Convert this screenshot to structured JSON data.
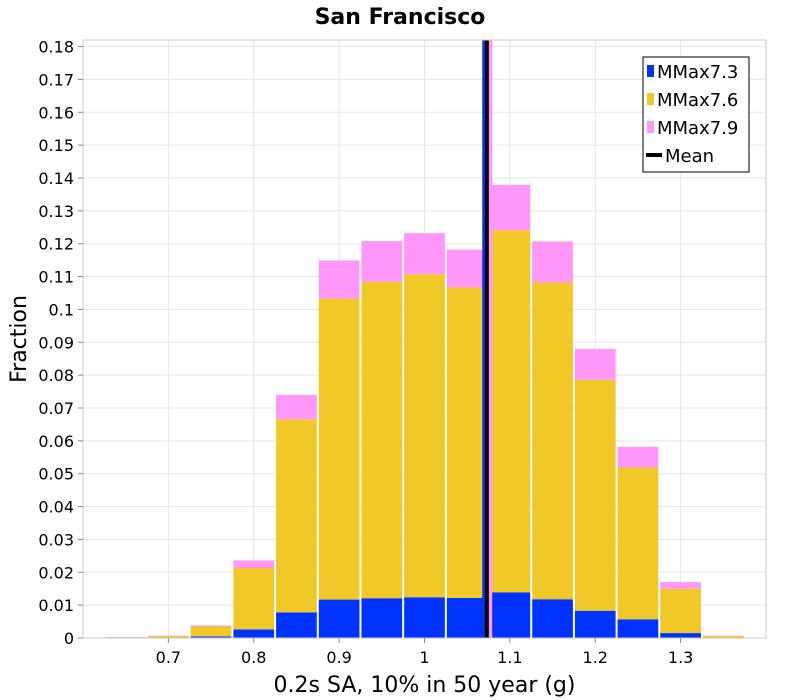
{
  "chart_data": {
    "type": "bar",
    "stacked": true,
    "title": "San Francisco",
    "xlabel": "0.2s SA, 10% in 50 year (g)",
    "ylabel": "Fraction",
    "xlim": [
      0.6,
      1.4
    ],
    "ylim": [
      0,
      0.182
    ],
    "bin_width": 0.05,
    "x_ticks": [
      "0.7",
      "0.8",
      "0.9",
      "1",
      "1.1",
      "1.2",
      "1.3"
    ],
    "x_tick_values": [
      0.7,
      0.8,
      0.9,
      1.0,
      1.1,
      1.2,
      1.3
    ],
    "y_ticks": [
      "0",
      "0.01",
      "0.02",
      "0.03",
      "0.04",
      "0.05",
      "0.06",
      "0.07",
      "0.08",
      "0.09",
      "0.1",
      "0.11",
      "0.12",
      "0.13",
      "0.14",
      "0.15",
      "0.16",
      "0.17",
      "0.18"
    ],
    "y_tick_values": [
      0,
      0.01,
      0.02,
      0.03,
      0.04,
      0.05,
      0.06,
      0.07,
      0.08,
      0.09,
      0.1,
      0.11,
      0.12,
      0.13,
      0.14,
      0.15,
      0.16,
      0.17,
      0.18
    ],
    "x": [
      0.65,
      0.7,
      0.75,
      0.8,
      0.85,
      0.9,
      0.95,
      1.0,
      1.05,
      1.1,
      1.15,
      1.2,
      1.25,
      1.3,
      1.35
    ],
    "series": [
      {
        "name": "MMax7.3",
        "color": "#0033ff",
        "values": [
          0.0,
          0.0001,
          0.0005,
          0.0026,
          0.0078,
          0.0117,
          0.0121,
          0.0124,
          0.0122,
          0.0139,
          0.0118,
          0.0083,
          0.0057,
          0.0015,
          0.0001
        ]
      },
      {
        "name": "MMax7.6",
        "color": "#f0c828",
        "values": [
          0.0002,
          0.0005,
          0.003,
          0.0187,
          0.0588,
          0.0916,
          0.0963,
          0.0983,
          0.0945,
          0.1102,
          0.0964,
          0.0703,
          0.0462,
          0.0135,
          0.0005
        ]
      },
      {
        "name": "MMax7.9",
        "color": "#ff96f8",
        "values": [
          0.0001,
          0.0001,
          0.0003,
          0.0023,
          0.0074,
          0.0116,
          0.0124,
          0.0125,
          0.0115,
          0.0138,
          0.0125,
          0.0094,
          0.0063,
          0.002,
          0.0001
        ]
      }
    ],
    "mean_lines": [
      {
        "series": "MMax7.3",
        "value": 1.07,
        "color": "#0033ff"
      },
      {
        "series": "MMax7.9",
        "value": 1.077,
        "color": "#ff96f8"
      },
      {
        "series": "Mean",
        "value": 1.073,
        "color": "#000000"
      }
    ],
    "legend": {
      "position": "top-right",
      "entries": [
        {
          "label": "MMax7.3",
          "color": "#0033ff",
          "kind": "box"
        },
        {
          "label": "MMax7.6",
          "color": "#f0c828",
          "kind": "box"
        },
        {
          "label": "MMax7.9",
          "color": "#ff96f8",
          "kind": "box"
        },
        {
          "label": "Mean",
          "color": "#000000",
          "kind": "line"
        }
      ]
    },
    "grid": true
  }
}
